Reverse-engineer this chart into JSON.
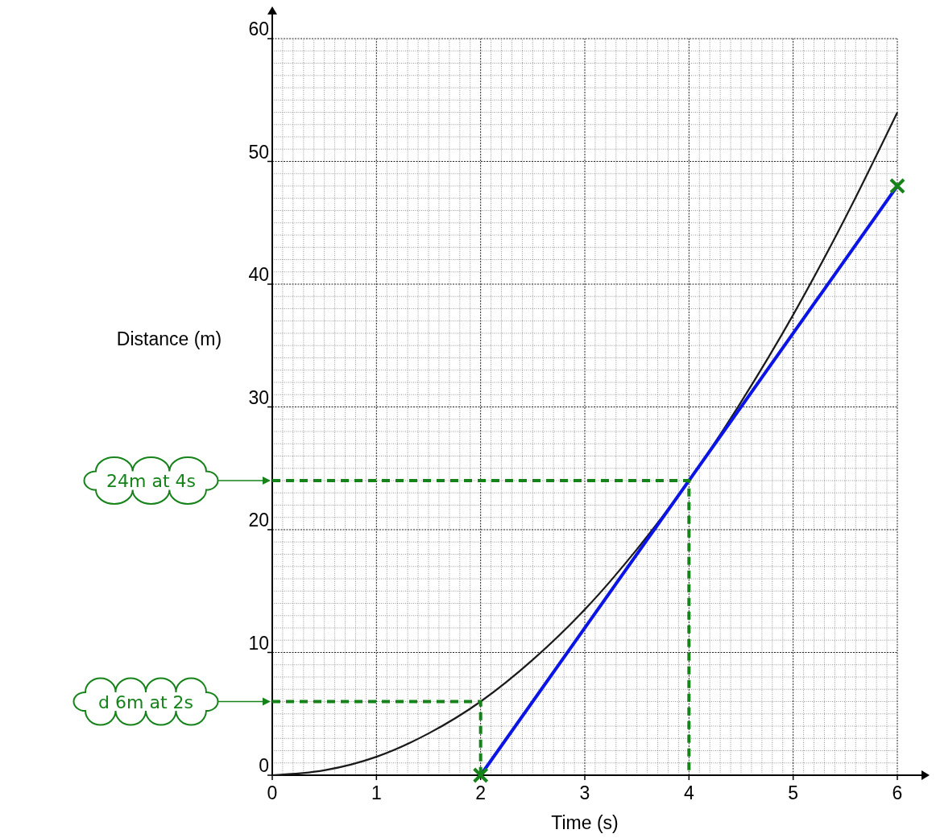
{
  "chart_data": {
    "type": "line",
    "xlabel": "Time (s)",
    "ylabel": "Distance (m)",
    "xlim": [
      0,
      6
    ],
    "ylim": [
      0,
      60
    ],
    "xticks": [
      0,
      1,
      2,
      3,
      4,
      5,
      6
    ],
    "yticks": [
      0,
      10,
      20,
      30,
      40,
      50,
      60
    ],
    "grid": true,
    "series": [
      {
        "color": "#1a1a1a",
        "x": [
          0,
          0.5,
          1,
          1.5,
          2,
          2.5,
          3,
          3.5,
          4,
          4.5,
          5,
          5.5,
          6
        ],
        "values": [
          0,
          0.4,
          1.5,
          3.4,
          6,
          9.4,
          13.5,
          18.4,
          24,
          30.4,
          37.5,
          45.4,
          54
        ]
      },
      {
        "color": "#0a14e6",
        "x": [
          2,
          6
        ],
        "values": [
          0,
          48
        ]
      },
      {
        "color": "#16831a",
        "line_style": "dashed",
        "x": [
          0,
          4,
          4
        ],
        "values": [
          24,
          24,
          0
        ]
      },
      {
        "color": "#16831a",
        "line_style": "dashed",
        "x": [
          0,
          2,
          2
        ],
        "values": [
          6,
          6,
          0
        ]
      },
      {
        "type": "scatter",
        "color": "#16831a",
        "marker": "cross",
        "x": [
          2,
          6
        ],
        "values": [
          0,
          48
        ]
      }
    ],
    "annotations": [
      "24m at 4s",
      "d 6m at 2s"
    ]
  }
}
